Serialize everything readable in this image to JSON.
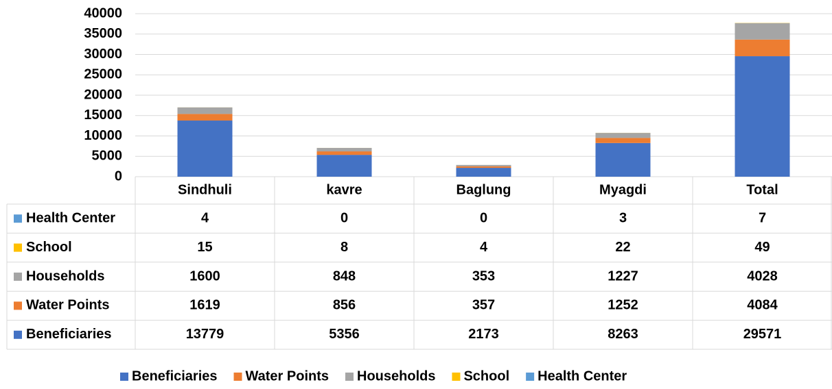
{
  "chart_data": {
    "type": "stacked_bar",
    "categories": [
      "Sindhuli",
      "kavre",
      "Baglung",
      "Myagdi",
      "Total"
    ],
    "series": [
      {
        "name": "Beneficiaries",
        "color": "#4472c4",
        "values": [
          13779,
          5356,
          2173,
          8263,
          29571
        ]
      },
      {
        "name": "Water Points",
        "color": "#ed7d31",
        "values": [
          1619,
          856,
          357,
          1252,
          4084
        ]
      },
      {
        "name": "Households",
        "color": "#a5a5a5",
        "values": [
          1600,
          848,
          353,
          1227,
          4028
        ]
      },
      {
        "name": "School",
        "color": "#ffc000",
        "values": [
          15,
          8,
          4,
          22,
          49
        ]
      },
      {
        "name": "Health Center",
        "color": "#5b9bd5",
        "values": [
          4,
          0,
          0,
          3,
          7
        ]
      }
    ],
    "ylim": [
      0,
      40000
    ],
    "yticks": [
      0,
      5000,
      10000,
      15000,
      20000,
      25000,
      30000,
      35000,
      40000
    ],
    "grid": true,
    "legend": "bottom",
    "data_table": true
  }
}
